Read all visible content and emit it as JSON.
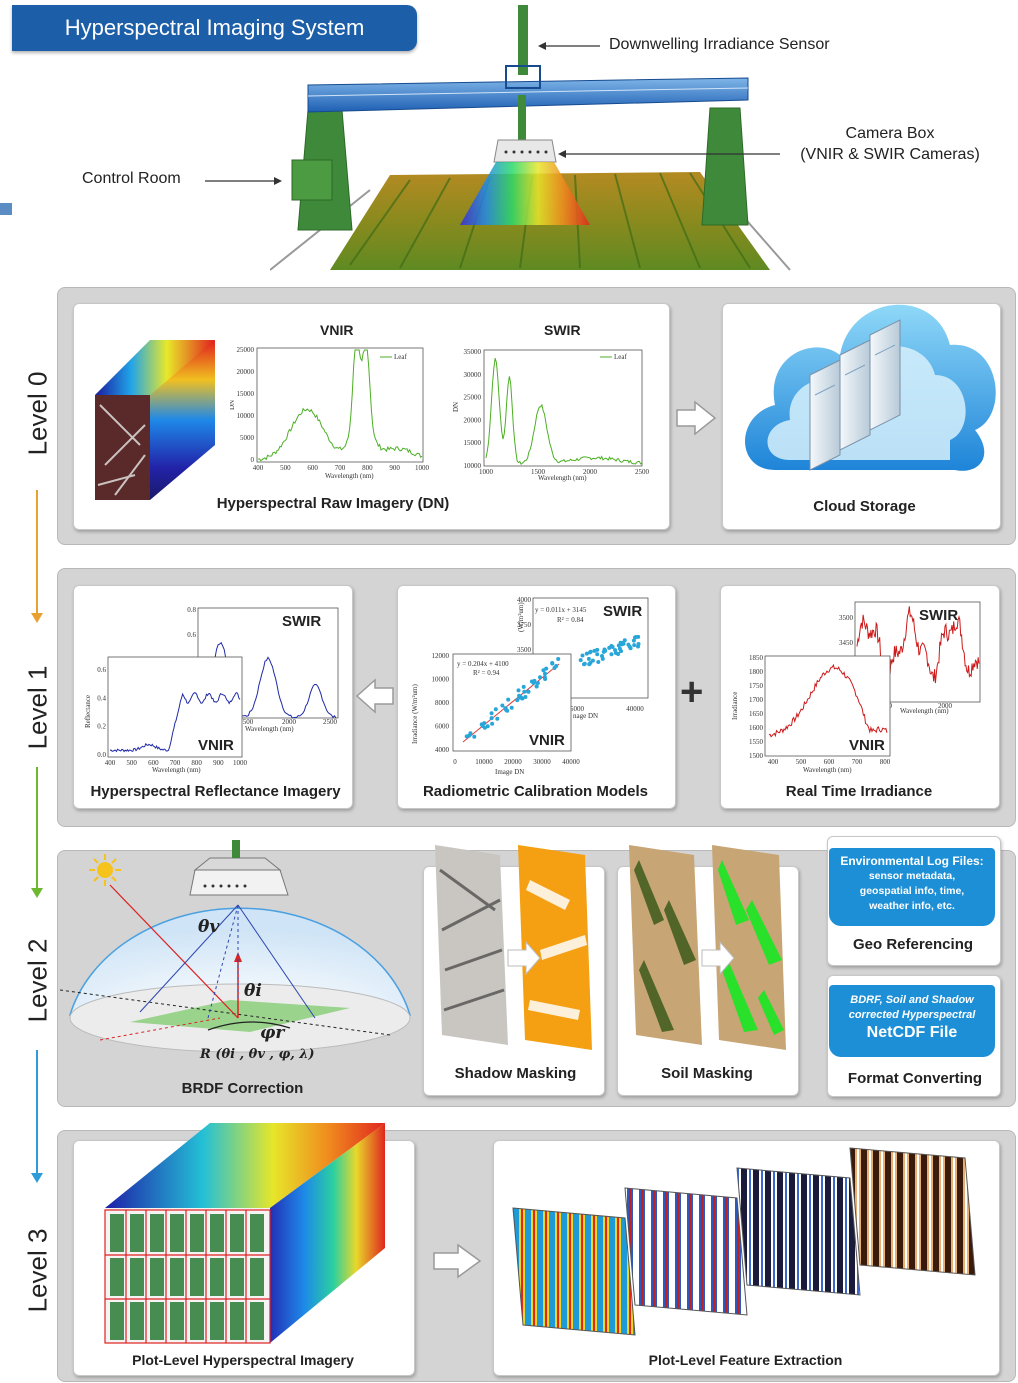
{
  "header": {
    "title": "Hyperspectral Imaging System"
  },
  "callouts": {
    "downwelling": "Downwelling Irradiance Sensor",
    "camera_box_line1": "Camera Box",
    "camera_box_line2": "(VNIR & SWIR Cameras)",
    "control_room": "Control Room"
  },
  "levels": {
    "l0": "Level 0",
    "l1": "Level 1",
    "l2": "Level 2",
    "l3": "Level 3"
  },
  "level0": {
    "vnir_title": "VNIR",
    "swir_title": "SWIR",
    "legend": "Leaf",
    "raw_caption": "Hyperspectral Raw Imagery (DN)",
    "cloud_caption": "Cloud Storage",
    "vnir_xlabel": "Wavelength (nm)",
    "swir_xlabel": "Wavelength (nm)",
    "vnir_ylabel": "DN",
    "swir_ylabel": "DN",
    "vnir_yticks": [
      "25000",
      "20000",
      "15000",
      "10000",
      "5000",
      "0"
    ],
    "vnir_xticks": [
      "400",
      "500",
      "600",
      "700",
      "800",
      "900",
      "1000"
    ],
    "swir_yticks": [
      "35000",
      "30000",
      "25000",
      "20000",
      "15000",
      "10000"
    ],
    "swir_xticks": [
      "1000",
      "1500",
      "2000",
      "2500"
    ]
  },
  "level1": {
    "refl_caption": "Hyperspectral Reflectance Imagery",
    "calib_caption": "Radiometric Calibration Models",
    "irr_caption": "Real Time Irradiance",
    "swir": "SWIR",
    "vnir": "VNIR",
    "refl_ylabel": "Reflectance",
    "refl_xlabel": "Wavelength (nm)",
    "refl_yticks": [
      "0.6",
      "0.4",
      "0.2",
      "0.0"
    ],
    "refl_xticks": [
      "400",
      "500",
      "600",
      "700",
      "800",
      "900",
      "1000"
    ],
    "refl_swir_yticks": [
      "0.8",
      "0.6"
    ],
    "refl_swir_xticks": [
      "500",
      "2000",
      "2500"
    ],
    "calib_swir_eq": "y = 0.011x + 3145",
    "calib_swir_r2": "R² = 0.84",
    "calib_vnir_eq": "y = 0.204x + 4100",
    "calib_vnir_r2": "R² = 0.94",
    "calib_ylabel": "Irradiance (W/m²um)",
    "calib_swir_ylabel": "(W/m²um)",
    "calib_xlabel": "Image DN",
    "calib_swir_xlabel": "nage DN",
    "calib_vnir_yticks": [
      "12000",
      "10000",
      "8000",
      "6000",
      "4000"
    ],
    "calib_vnir_xticks": [
      "0",
      "10000",
      "20000",
      "30000",
      "40000"
    ],
    "calib_swir_yticks": [
      "4000",
      "3750",
      "3500"
    ],
    "calib_swir_xticks": [
      "5000",
      "40000"
    ],
    "irr_yticks": [
      "1850",
      "1800",
      "1750",
      "1700",
      "1650",
      "1600",
      "1550",
      "1500"
    ],
    "irr_xticks": [
      "400",
      "500",
      "600",
      "700",
      "800"
    ],
    "irr_ylabel": "Irradiance",
    "irr_xlabel": "Wavelength (nm)",
    "irr_swir_yticks": [
      "3500",
      "3450"
    ],
    "irr_swir_xticks": [
      "1500",
      "2000"
    ],
    "plus": "+"
  },
  "level2": {
    "brdf_caption": "BRDF Correction",
    "shadow_caption": "Shadow Masking",
    "soil_caption": "Soil Masking",
    "geo_caption": "Geo Referencing",
    "format_caption": "Format Converting",
    "env_title": "Environmental Log Files:",
    "env_body": "sensor metadata, geospatial info, time, weather info, etc.",
    "netcdf_line1": "BDRF, Soil and Shadow",
    "netcdf_line2": "corrected Hyperspectral",
    "netcdf_line3": "NetCDF File",
    "theta_v": "θv",
    "theta_i": "θi",
    "phi_r": "φr",
    "brdf_formula": "R (θi , θv , φ, λ)"
  },
  "level3": {
    "plot_caption": "Plot-Level Hyperspectral Imagery",
    "feature_caption": "Plot-Level Feature Extraction"
  },
  "colors": {
    "badge": "#1d5ea8",
    "panel": "#d4d4d4",
    "vnir_line": "#4caf24",
    "swir_line": "#4caf24",
    "refl_line": "#1f2aa8",
    "irr_line": "#cc1a1a",
    "calib_point": "#29a6d9",
    "calib_fit": "#e23a3a",
    "mask_orange": "#f4a012",
    "mask_green": "#29e02a",
    "folder_blue": "#1d8fd6"
  }
}
